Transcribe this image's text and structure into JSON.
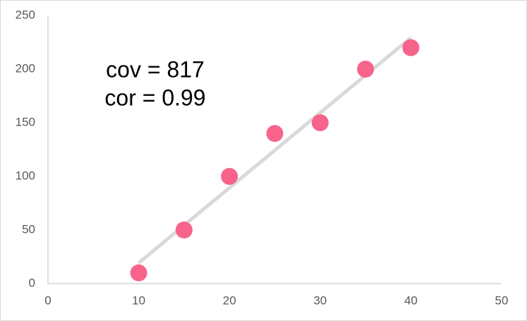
{
  "chart_data": {
    "type": "scatter",
    "annotations": [
      "cov = 817",
      "cor = 0.99"
    ],
    "series": [
      {
        "color": "#f7638a",
        "x": [
          10,
          15,
          20,
          25,
          30,
          35,
          40
        ],
        "values": [
          10,
          50,
          100,
          140,
          150,
          200,
          220
        ]
      }
    ],
    "trendline": {
      "color": "#d9d9d9",
      "x": [
        10,
        40
      ],
      "values": [
        19.3,
        229.3
      ]
    },
    "xlim": [
      0,
      50
    ],
    "xticks": [
      0,
      10,
      20,
      30,
      40,
      50
    ],
    "ylim": [
      0,
      250
    ],
    "yticks": [
      0,
      50,
      100,
      150,
      200,
      250
    ],
    "grid": false
  }
}
